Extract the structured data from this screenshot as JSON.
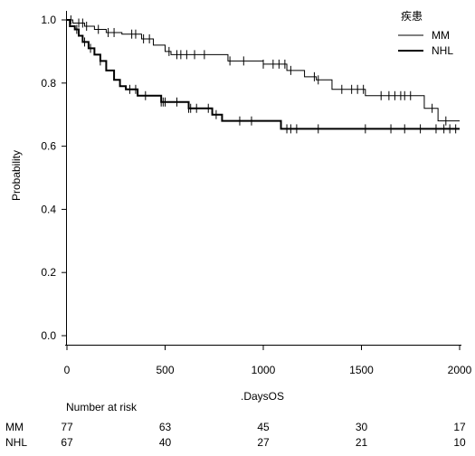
{
  "chart_data": {
    "type": "line",
    "subtype": "kaplan-meier",
    "title": "",
    "xlabel": ".DaysOS",
    "ylabel": "Probability",
    "xlim": [
      0,
      2000
    ],
    "ylim": [
      0,
      1
    ],
    "x_ticks": [
      0,
      500,
      1000,
      1500,
      2000
    ],
    "y_ticks": [
      0.0,
      0.2,
      0.4,
      0.6,
      0.8,
      1.0
    ],
    "x_tick_labels": [
      "0",
      "500",
      "1000",
      "1500",
      "2000"
    ],
    "y_tick_labels": [
      "0.0",
      "0.2",
      "0.4",
      "0.6",
      "0.8",
      "1.0"
    ],
    "grid": false,
    "legend": {
      "title": "疾患",
      "position": "top-right"
    },
    "series": [
      {
        "name": "MM",
        "color": "#000000",
        "line_style": "thin",
        "steps": [
          [
            0,
            1.0
          ],
          [
            30,
            0.99
          ],
          [
            90,
            0.98
          ],
          [
            140,
            0.97
          ],
          [
            200,
            0.96
          ],
          [
            280,
            0.955
          ],
          [
            380,
            0.94
          ],
          [
            440,
            0.92
          ],
          [
            500,
            0.9
          ],
          [
            530,
            0.89
          ],
          [
            820,
            0.87
          ],
          [
            1000,
            0.86
          ],
          [
            1120,
            0.84
          ],
          [
            1210,
            0.82
          ],
          [
            1270,
            0.81
          ],
          [
            1350,
            0.78
          ],
          [
            1520,
            0.76
          ],
          [
            1820,
            0.72
          ],
          [
            1890,
            0.68
          ],
          [
            2000,
            0.68
          ]
        ],
        "censor_x": [
          20,
          60,
          80,
          100,
          160,
          210,
          240,
          330,
          350,
          390,
          420,
          520,
          560,
          580,
          610,
          650,
          700,
          830,
          900,
          1000,
          1050,
          1080,
          1110,
          1140,
          1260,
          1280,
          1400,
          1450,
          1480,
          1510,
          1600,
          1640,
          1670,
          1700,
          1720,
          1750,
          1860,
          1930
        ]
      },
      {
        "name": "NHL",
        "color": "#000000",
        "line_style": "thick",
        "steps": [
          [
            0,
            1.0
          ],
          [
            15,
            0.98
          ],
          [
            40,
            0.97
          ],
          [
            60,
            0.95
          ],
          [
            80,
            0.93
          ],
          [
            110,
            0.91
          ],
          [
            140,
            0.89
          ],
          [
            170,
            0.87
          ],
          [
            200,
            0.84
          ],
          [
            240,
            0.81
          ],
          [
            270,
            0.79
          ],
          [
            300,
            0.78
          ],
          [
            360,
            0.76
          ],
          [
            480,
            0.74
          ],
          [
            620,
            0.72
          ],
          [
            740,
            0.7
          ],
          [
            790,
            0.68
          ],
          [
            1090,
            0.655
          ],
          [
            2000,
            0.655
          ]
        ],
        "censor_x": [
          50,
          90,
          120,
          170,
          320,
          350,
          400,
          480,
          490,
          500,
          560,
          620,
          630,
          660,
          720,
          760,
          880,
          940,
          1120,
          1140,
          1170,
          1280,
          1520,
          1650,
          1720,
          1800,
          1880,
          1920,
          1950,
          1980
        ]
      }
    ],
    "risk_table": {
      "header": "Number at risk",
      "times": [
        0,
        500,
        1000,
        1500,
        2000
      ],
      "rows": [
        {
          "name": "MM",
          "values": [
            "77",
            "63",
            "45",
            "30",
            "17"
          ]
        },
        {
          "name": "NHL",
          "values": [
            "67",
            "40",
            "27",
            "21",
            "10"
          ]
        }
      ]
    }
  }
}
